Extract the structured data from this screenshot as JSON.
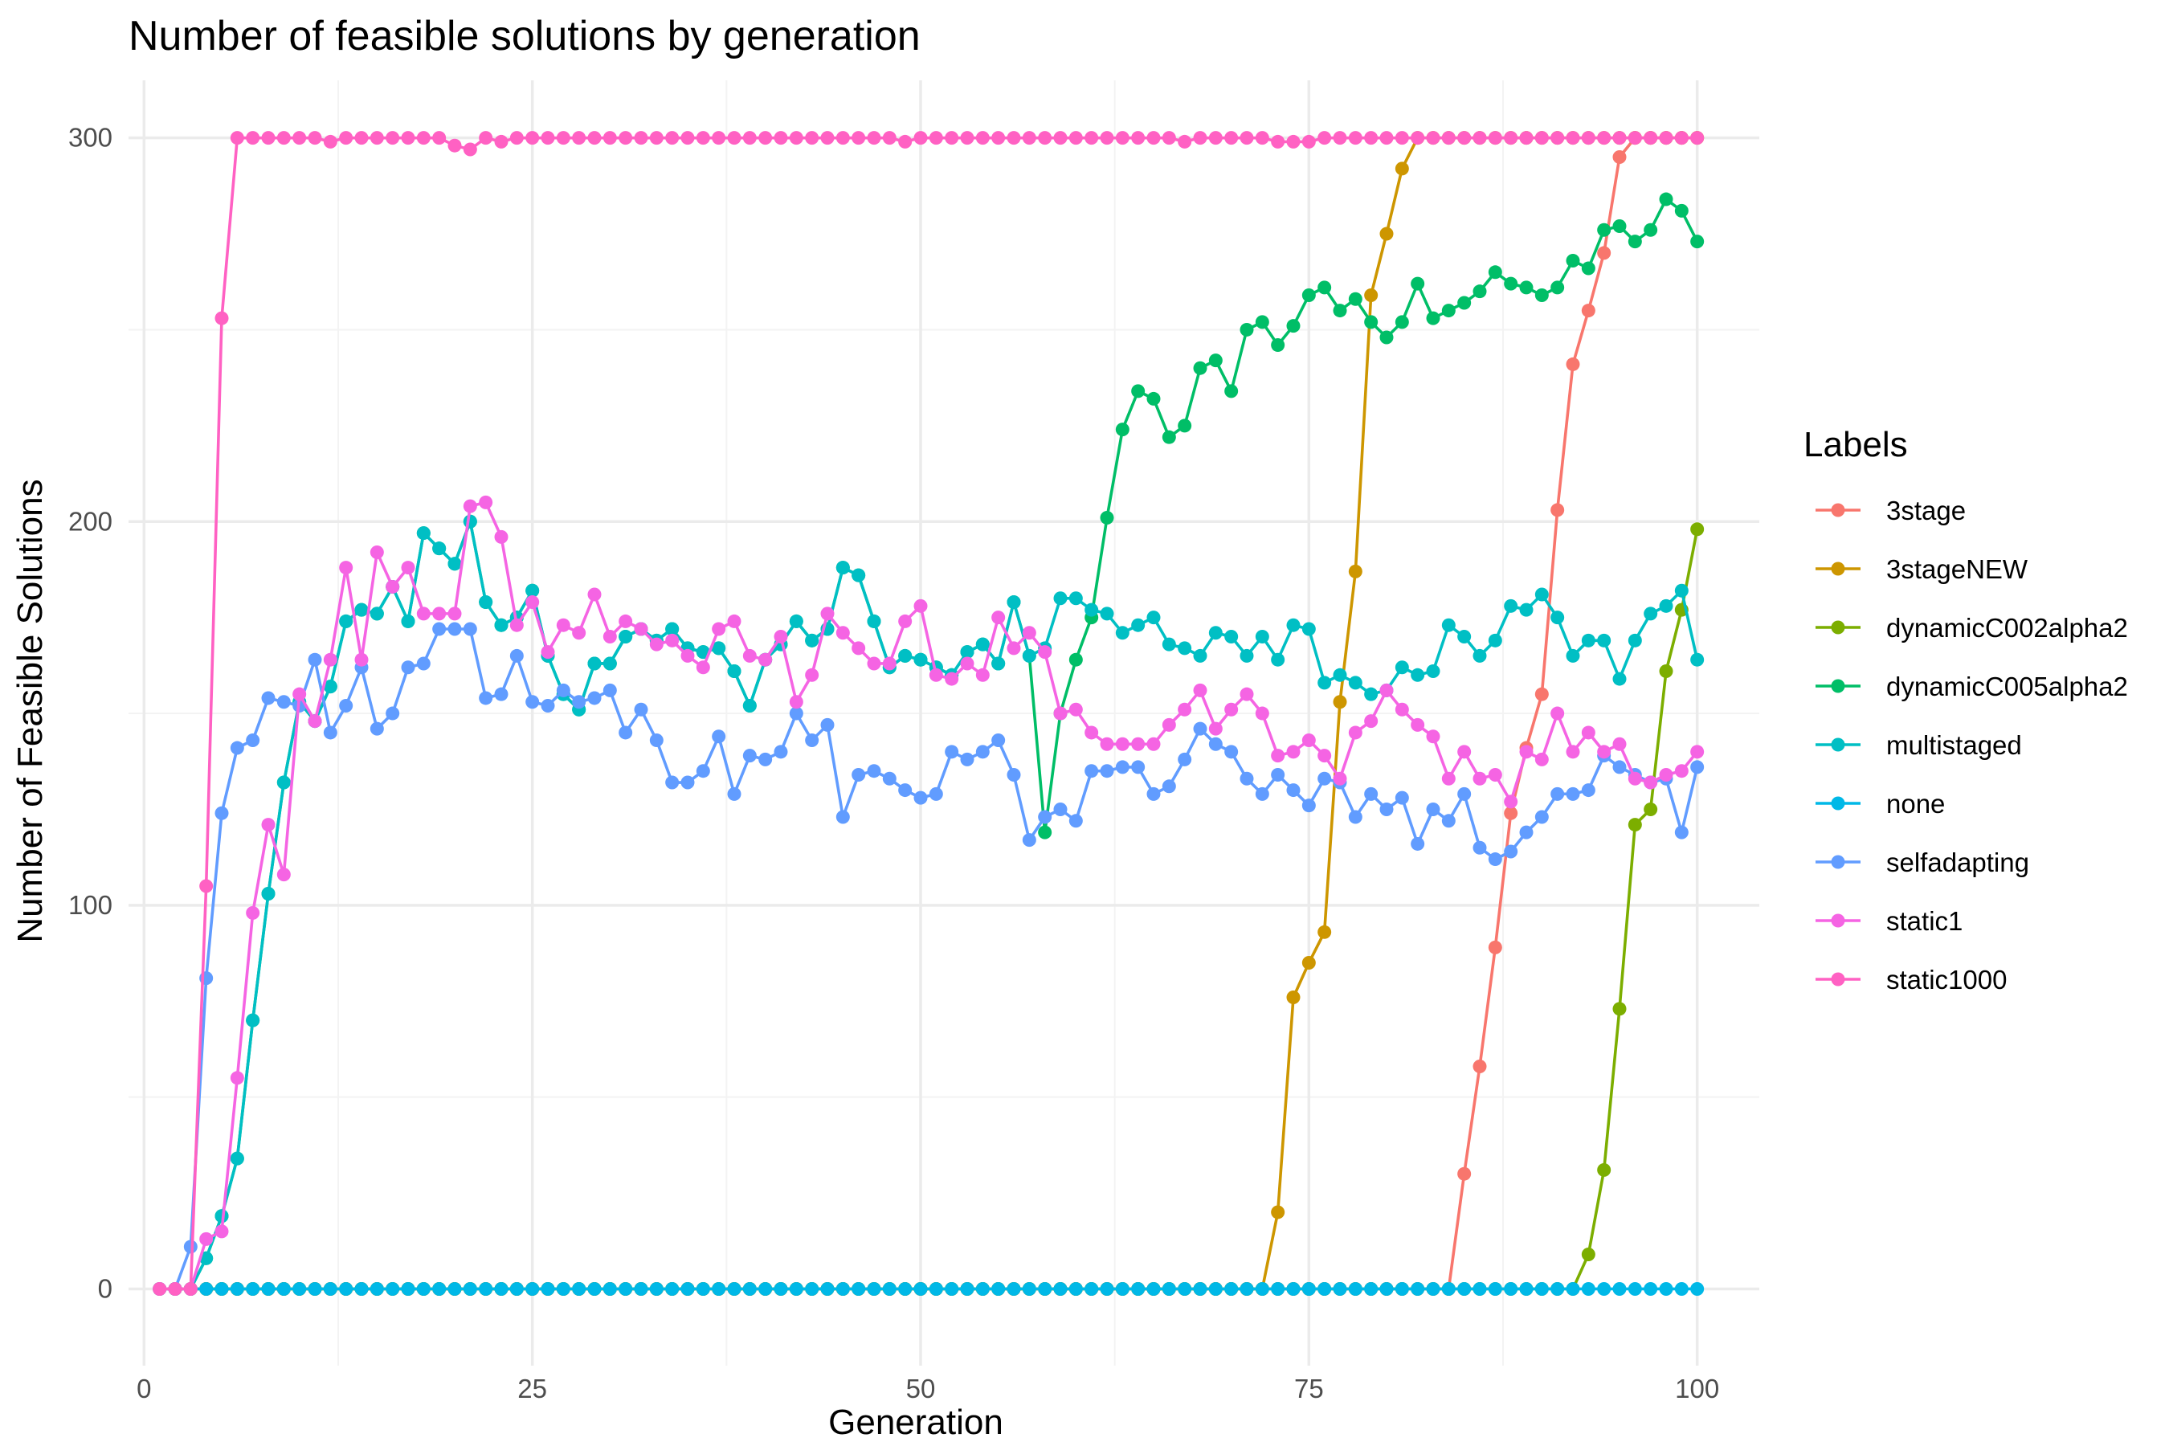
{
  "chart_data": {
    "type": "line",
    "title": "Number of feasible solutions by generation",
    "xlabel": "Generation",
    "ylabel": "Number of Feasible Solutions",
    "xlim": [
      -1,
      104
    ],
    "ylim": [
      -20,
      315
    ],
    "x_ticks": [
      0,
      25,
      50,
      75,
      100
    ],
    "y_ticks": [
      0,
      100,
      200,
      300
    ],
    "x_minor_ticks": [
      12.5,
      37.5,
      62.5,
      87.5
    ],
    "y_minor_ticks": [
      50,
      150,
      250
    ],
    "grid": true,
    "legend_title": "Labels",
    "legend_position": "right",
    "x": [
      1,
      2,
      3,
      4,
      5,
      6,
      7,
      8,
      9,
      10,
      11,
      12,
      13,
      14,
      15,
      16,
      17,
      18,
      19,
      20,
      21,
      22,
      23,
      24,
      25,
      26,
      27,
      28,
      29,
      30,
      31,
      32,
      33,
      34,
      35,
      36,
      37,
      38,
      39,
      40,
      41,
      42,
      43,
      44,
      45,
      46,
      47,
      48,
      49,
      50,
      51,
      52,
      53,
      54,
      55,
      56,
      57,
      58,
      59,
      60,
      61,
      62,
      63,
      64,
      65,
      66,
      67,
      68,
      69,
      70,
      71,
      72,
      73,
      74,
      75,
      76,
      77,
      78,
      79,
      80,
      81,
      82,
      83,
      84,
      85,
      86,
      87,
      88,
      89,
      90,
      91,
      92,
      93,
      94,
      95,
      96,
      97,
      98,
      99,
      100
    ],
    "series": [
      {
        "name": "3stage",
        "color": "#F8766D",
        "values": [
          0,
          0,
          0,
          0,
          0,
          0,
          0,
          0,
          0,
          0,
          0,
          0,
          0,
          0,
          0,
          0,
          0,
          0,
          0,
          0,
          0,
          0,
          0,
          0,
          0,
          0,
          0,
          0,
          0,
          0,
          0,
          0,
          0,
          0,
          0,
          0,
          0,
          0,
          0,
          0,
          0,
          0,
          0,
          0,
          0,
          0,
          0,
          0,
          0,
          0,
          0,
          0,
          0,
          0,
          0,
          0,
          0,
          0,
          0,
          0,
          0,
          0,
          0,
          0,
          0,
          0,
          0,
          0,
          0,
          0,
          0,
          0,
          0,
          0,
          0,
          0,
          0,
          0,
          0,
          0,
          0,
          0,
          0,
          0,
          30,
          58,
          89,
          124,
          141,
          155,
          203,
          241,
          255,
          270,
          295,
          300,
          300,
          300,
          300,
          300
        ]
      },
      {
        "name": "3stageNEW",
        "color": "#CD9600",
        "values": [
          0,
          0,
          0,
          0,
          0,
          0,
          0,
          0,
          0,
          0,
          0,
          0,
          0,
          0,
          0,
          0,
          0,
          0,
          0,
          0,
          0,
          0,
          0,
          0,
          0,
          0,
          0,
          0,
          0,
          0,
          0,
          0,
          0,
          0,
          0,
          0,
          0,
          0,
          0,
          0,
          0,
          0,
          0,
          0,
          0,
          0,
          0,
          0,
          0,
          0,
          0,
          0,
          0,
          0,
          0,
          0,
          0,
          0,
          0,
          0,
          0,
          0,
          0,
          0,
          0,
          0,
          0,
          0,
          0,
          0,
          0,
          0,
          20,
          76,
          85,
          93,
          153,
          187,
          259,
          275,
          292,
          300,
          300,
          300,
          300,
          300,
          300,
          300,
          300,
          300,
          300,
          300,
          300,
          300,
          300,
          300,
          300,
          300,
          300,
          300
        ]
      },
      {
        "name": "dynamicC002alpha2",
        "color": "#7CAE00",
        "values": [
          0,
          0,
          0,
          0,
          0,
          0,
          0,
          0,
          0,
          0,
          0,
          0,
          0,
          0,
          0,
          0,
          0,
          0,
          0,
          0,
          0,
          0,
          0,
          0,
          0,
          0,
          0,
          0,
          0,
          0,
          0,
          0,
          0,
          0,
          0,
          0,
          0,
          0,
          0,
          0,
          0,
          0,
          0,
          0,
          0,
          0,
          0,
          0,
          0,
          0,
          0,
          0,
          0,
          0,
          0,
          0,
          0,
          0,
          0,
          0,
          0,
          0,
          0,
          0,
          0,
          0,
          0,
          0,
          0,
          0,
          0,
          0,
          0,
          0,
          0,
          0,
          0,
          0,
          0,
          0,
          0,
          0,
          0,
          0,
          0,
          0,
          0,
          0,
          0,
          0,
          0,
          0,
          9,
          31,
          73,
          121,
          125,
          161,
          177,
          198
        ]
      },
      {
        "name": "dynamicC005alpha2",
        "color": "#00BE67",
        "values": [
          0,
          0,
          0,
          8,
          19,
          34,
          70,
          103,
          132,
          153,
          148,
          157,
          174,
          177,
          176,
          183,
          174,
          197,
          193,
          189,
          200,
          179,
          173,
          175,
          182,
          165,
          155,
          151,
          163,
          163,
          170,
          172,
          169,
          172,
          167,
          166,
          167,
          161,
          152,
          164,
          168,
          174,
          169,
          172,
          188,
          186,
          174,
          162,
          165,
          164,
          162,
          160,
          166,
          168,
          163,
          179,
          165,
          119,
          150,
          164,
          175,
          201,
          224,
          234,
          232,
          222,
          225,
          240,
          242,
          234,
          250,
          252,
          246,
          251,
          259,
          261,
          255,
          258,
          252,
          248,
          252,
          262,
          253,
          255,
          257,
          260,
          265,
          262,
          261,
          259,
          261,
          268,
          266,
          276,
          277,
          273,
          276,
          284,
          281,
          273
        ]
      },
      {
        "name": "multistaged",
        "color": "#00BFC4",
        "values": [
          0,
          0,
          0,
          8,
          19,
          34,
          70,
          103,
          132,
          153,
          148,
          157,
          174,
          177,
          176,
          183,
          174,
          197,
          193,
          189,
          200,
          179,
          173,
          175,
          182,
          165,
          155,
          151,
          163,
          163,
          170,
          172,
          169,
          172,
          167,
          166,
          167,
          161,
          152,
          164,
          168,
          174,
          169,
          172,
          188,
          186,
          174,
          162,
          165,
          164,
          162,
          160,
          166,
          168,
          163,
          179,
          165,
          167,
          180,
          180,
          177,
          176,
          171,
          173,
          175,
          168,
          167,
          165,
          171,
          170,
          165,
          170,
          164,
          173,
          172,
          158,
          160,
          158,
          155,
          156,
          162,
          160,
          161,
          173,
          170,
          165,
          169,
          178,
          177,
          181,
          175,
          165,
          169,
          169,
          159,
          169,
          176,
          178,
          182,
          164
        ]
      },
      {
        "name": "none",
        "color": "#00B8E7",
        "values": [
          0,
          0,
          0,
          0,
          0,
          0,
          0,
          0,
          0,
          0,
          0,
          0,
          0,
          0,
          0,
          0,
          0,
          0,
          0,
          0,
          0,
          0,
          0,
          0,
          0,
          0,
          0,
          0,
          0,
          0,
          0,
          0,
          0,
          0,
          0,
          0,
          0,
          0,
          0,
          0,
          0,
          0,
          0,
          0,
          0,
          0,
          0,
          0,
          0,
          0,
          0,
          0,
          0,
          0,
          0,
          0,
          0,
          0,
          0,
          0,
          0,
          0,
          0,
          0,
          0,
          0,
          0,
          0,
          0,
          0,
          0,
          0,
          0,
          0,
          0,
          0,
          0,
          0,
          0,
          0,
          0,
          0,
          0,
          0,
          0,
          0,
          0,
          0,
          0,
          0,
          0,
          0,
          0,
          0,
          0,
          0,
          0,
          0,
          0,
          0
        ]
      },
      {
        "name": "selfadapting",
        "color": "#619CFF",
        "values": [
          0,
          0,
          11,
          81,
          124,
          141,
          143,
          154,
          153,
          152,
          164,
          145,
          152,
          162,
          146,
          150,
          162,
          163,
          172,
          172,
          172,
          154,
          155,
          165,
          153,
          152,
          156,
          153,
          154,
          156,
          145,
          151,
          143,
          132,
          132,
          135,
          144,
          129,
          139,
          138,
          140,
          150,
          143,
          147,
          123,
          134,
          135,
          133,
          130,
          128,
          129,
          140,
          138,
          140,
          143,
          134,
          117,
          123,
          125,
          122,
          135,
          135,
          136,
          136,
          129,
          131,
          138,
          146,
          142,
          140,
          133,
          129,
          134,
          130,
          126,
          133,
          132,
          123,
          129,
          125,
          128,
          116,
          125,
          122,
          129,
          115,
          112,
          114,
          119,
          123,
          129,
          129,
          130,
          139,
          136,
          134,
          132,
          133,
          119,
          136
        ]
      },
      {
        "name": "static1",
        "color": "#F564E3",
        "values": [
          0,
          0,
          0,
          13,
          15,
          55,
          98,
          121,
          108,
          155,
          148,
          164,
          188,
          164,
          192,
          183,
          188,
          176,
          176,
          176,
          204,
          205,
          196,
          173,
          179,
          166,
          173,
          171,
          181,
          170,
          174,
          172,
          168,
          169,
          165,
          162,
          172,
          174,
          165,
          164,
          170,
          153,
          160,
          176,
          171,
          167,
          163,
          163,
          174,
          178,
          160,
          159,
          163,
          160,
          175,
          167,
          171,
          166,
          150,
          151,
          145,
          142,
          142,
          142,
          142,
          147,
          151,
          156,
          146,
          151,
          155,
          150,
          139,
          140,
          143,
          139,
          133,
          145,
          148,
          156,
          151,
          147,
          144,
          133,
          140,
          133,
          134,
          127,
          140,
          138,
          150,
          140,
          145,
          140,
          142,
          133,
          132,
          134,
          135,
          140
        ]
      },
      {
        "name": "static1000",
        "color": "#FF61C3",
        "values": [
          0,
          0,
          0,
          105,
          253,
          300,
          300,
          300,
          300,
          300,
          300,
          299,
          300,
          300,
          300,
          300,
          300,
          300,
          300,
          298,
          297,
          300,
          299,
          300,
          300,
          300,
          300,
          300,
          300,
          300,
          300,
          300,
          300,
          300,
          300,
          300,
          300,
          300,
          300,
          300,
          300,
          300,
          300,
          300,
          300,
          300,
          300,
          300,
          299,
          300,
          300,
          300,
          300,
          300,
          300,
          300,
          300,
          300,
          300,
          300,
          300,
          300,
          300,
          300,
          300,
          300,
          299,
          300,
          300,
          300,
          300,
          300,
          299,
          299,
          299,
          300,
          300,
          300,
          300,
          300,
          300,
          300,
          300,
          300,
          300,
          300,
          300,
          300,
          300,
          300,
          300,
          300,
          300,
          300,
          300,
          300,
          300,
          300,
          300,
          300
        ]
      }
    ]
  }
}
